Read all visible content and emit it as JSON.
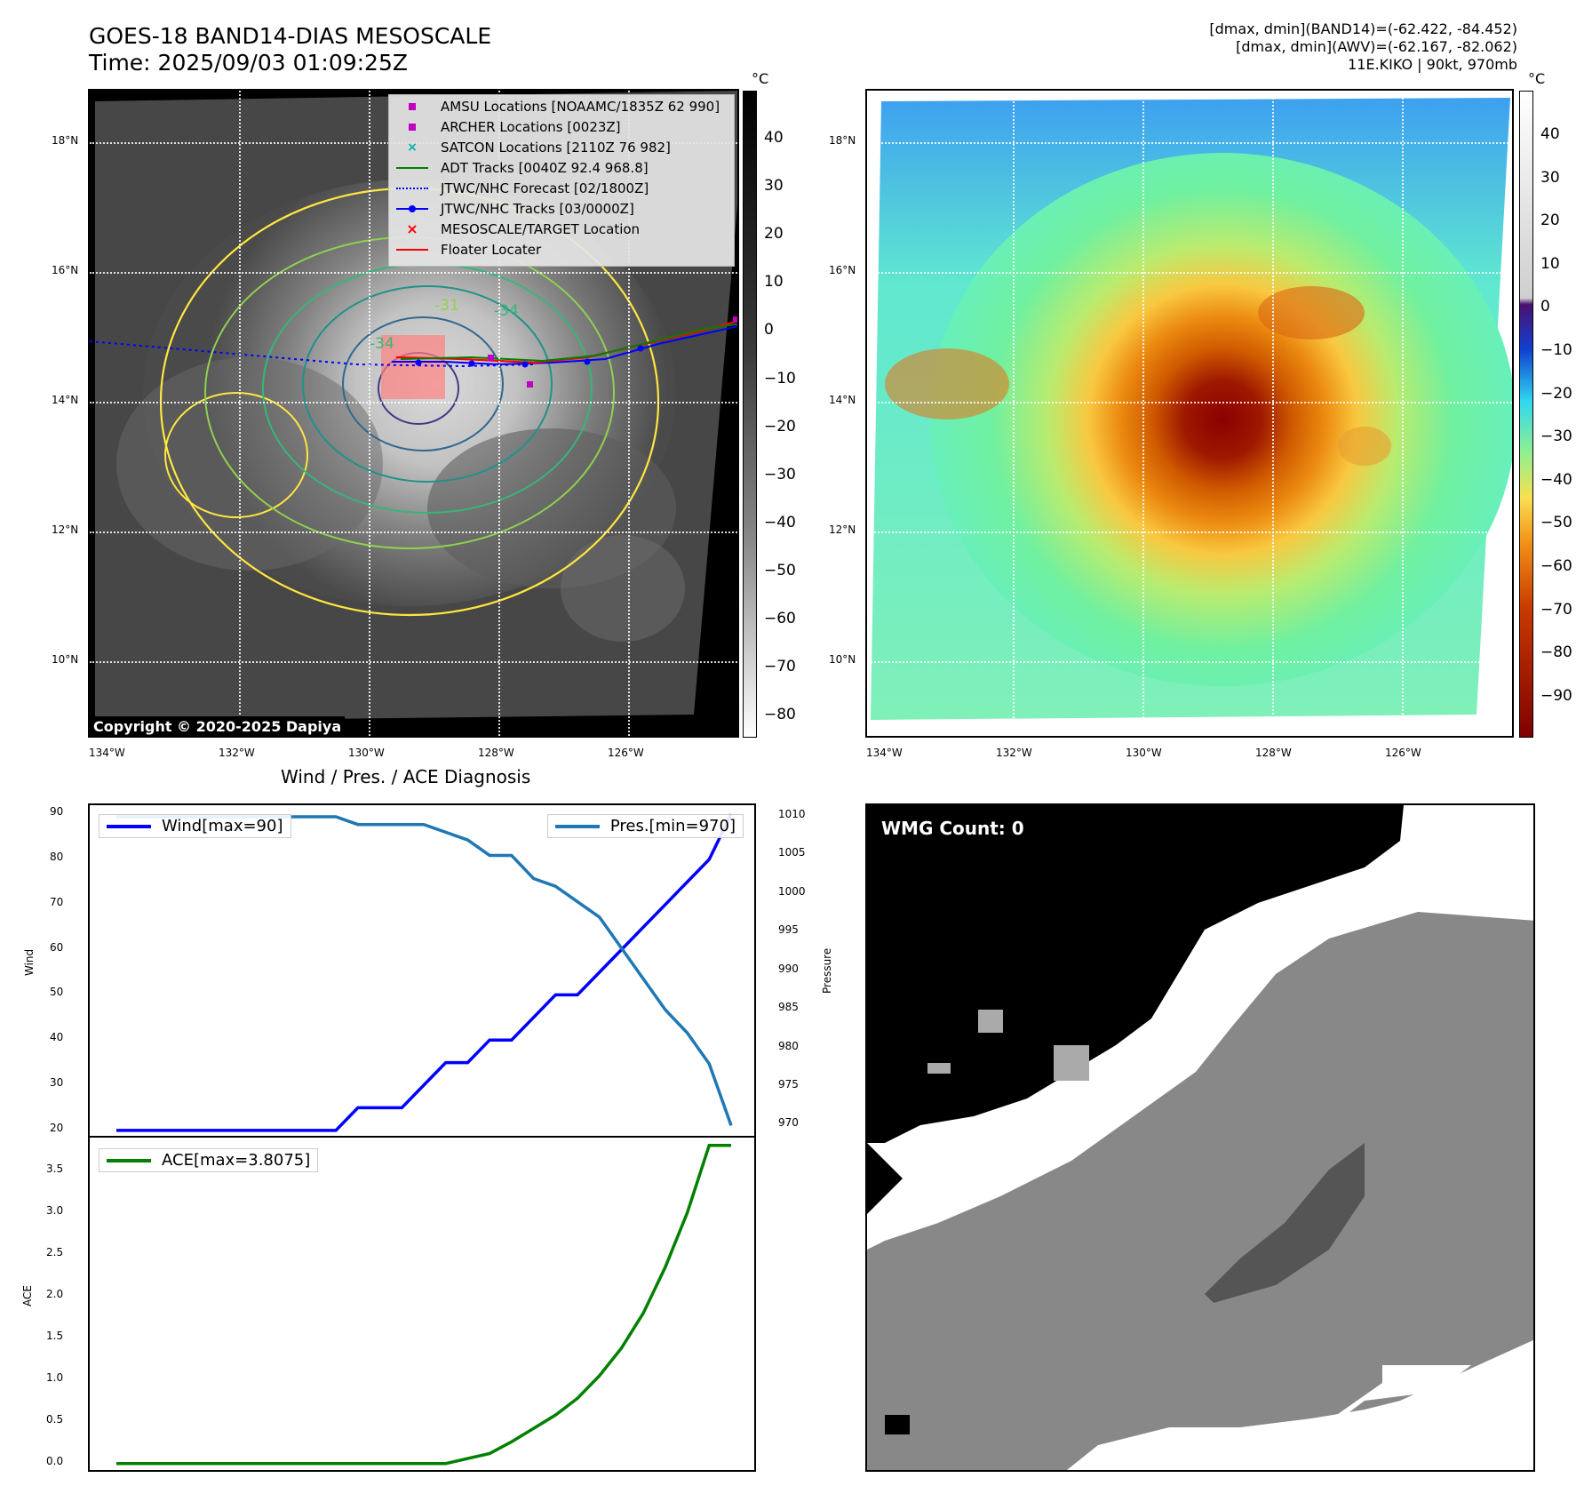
{
  "header": {
    "title": "GOES-18 BAND14-DIAS MESOSCALE",
    "time": "Time: 2025/09/03 01:09:25Z",
    "meta_line1": "[dmax, dmin](BAND14)=(-62.422, -84.452)",
    "meta_line2": "[dmax, dmin](AWV)=(-62.167, -82.062)",
    "meta_line3": "11E.KIKO | 90kt, 970mb"
  },
  "map": {
    "lat_ticks": [
      "18°N",
      "16°N",
      "14°N",
      "12°N",
      "10°N"
    ],
    "lon_ticks": [
      "134°W",
      "132°W",
      "130°W",
      "128°W",
      "126°W"
    ],
    "copyright": "Copyright © 2020-2025 Dapiya",
    "contour_labels": [
      "-31",
      "-34",
      "-34"
    ],
    "colormap_left": "grayscale",
    "colormap_right": "jet-like",
    "track_colors": {
      "adt": "#008000",
      "forecast": "#0000ff",
      "track": "#0000ff",
      "floater": "#ff0000",
      "amsu": "#c000c0",
      "satcon": "#00b0b0"
    }
  },
  "legend": [
    {
      "label": "AMSU Locations [NOAAMC/1835Z 62 990]",
      "icon": "magenta-square-marker",
      "color": "#c000c0"
    },
    {
      "label": "ARCHER Locations [0023Z]",
      "icon": "magenta-square-marker",
      "color": "#c000c0"
    },
    {
      "label": "SATCON Locations [2110Z 76 982]",
      "icon": "cyan-x-marker",
      "color": "#00b0b0"
    },
    {
      "label": "ADT Tracks [0040Z 92.4 968.8]",
      "icon": "green-line",
      "color": "#008000"
    },
    {
      "label": "JTWC/NHC Forecast [02/1800Z]",
      "icon": "blue-dotted-line",
      "color": "#0000ff"
    },
    {
      "label": "JTWC/NHC Tracks [03/0000Z]",
      "icon": "blue-line-dot",
      "color": "#0000ff"
    },
    {
      "label": "MESOSCALE/TARGET Location",
      "icon": "red-x-marker",
      "color": "#ff0000"
    },
    {
      "label": "Floater Locater",
      "icon": "red-line",
      "color": "#ff0000"
    }
  ],
  "colorbar_left": {
    "unit": "°C",
    "ticks": [
      "40",
      "30",
      "20",
      "10",
      "0",
      "−10",
      "−20",
      "−30",
      "−40",
      "−50",
      "−60",
      "−70",
      "−80"
    ]
  },
  "colorbar_right": {
    "unit": "°C",
    "ticks": [
      "40",
      "30",
      "20",
      "10",
      "0",
      "−10",
      "−20",
      "−30",
      "−40",
      "−50",
      "−60",
      "−70",
      "−80",
      "−90"
    ]
  },
  "wmg": {
    "label": "WMG Count: 0"
  },
  "chart_data": [
    {
      "type": "line",
      "title": "Wind / Pres. / ACE Diagnosis",
      "ylabel": "Wind",
      "y2label": "Pressure",
      "ylim": [
        18,
        92
      ],
      "y2lim": [
        968.2,
        1011.5
      ],
      "yticks": [
        20,
        30,
        40,
        50,
        60,
        70,
        80,
        90
      ],
      "y2ticks": [
        970,
        975,
        980,
        985,
        990,
        995,
        1000,
        1005,
        1010
      ],
      "series": [
        {
          "name": "Wind[max=90]",
          "axis": "left",
          "color": "#0000ff",
          "values": [
            20,
            20,
            20,
            20,
            20,
            20,
            20,
            20,
            20,
            20,
            20,
            25,
            25,
            25,
            30,
            35,
            35,
            40,
            40,
            45,
            50,
            50,
            55,
            60,
            65,
            70,
            75,
            80,
            90
          ]
        },
        {
          "name": "Pres.[min=970]",
          "axis": "right",
          "color": "#1f77b4",
          "values": [
            1010,
            1010,
            1010,
            1010,
            1010,
            1010,
            1010,
            1010,
            1010,
            1010,
            1010,
            1009,
            1009,
            1009,
            1009,
            1008,
            1007,
            1005,
            1005,
            1002,
            1001,
            999,
            997,
            993,
            989,
            985,
            982,
            978,
            970
          ]
        }
      ]
    },
    {
      "type": "line",
      "ylabel": "ACE",
      "ylim": [
        -0.12,
        3.9
      ],
      "yticks": [
        0.0,
        0.5,
        1.0,
        1.5,
        2.0,
        2.5,
        3.0,
        3.5
      ],
      "ytick_labels": [
        "0.0",
        "0.5",
        "1.0",
        "1.5",
        "2.0",
        "2.5",
        "3.0",
        "3.5"
      ],
      "series": [
        {
          "name": "ACE[max=3.8075]",
          "color": "#008000",
          "values": [
            0,
            0,
            0,
            0,
            0,
            0,
            0,
            0,
            0,
            0,
            0,
            0,
            0,
            0,
            0,
            0,
            0.06,
            0.12,
            0.26,
            0.42,
            0.58,
            0.78,
            1.05,
            1.38,
            1.8,
            2.35,
            3.0,
            3.8075,
            3.8075
          ]
        }
      ]
    }
  ]
}
